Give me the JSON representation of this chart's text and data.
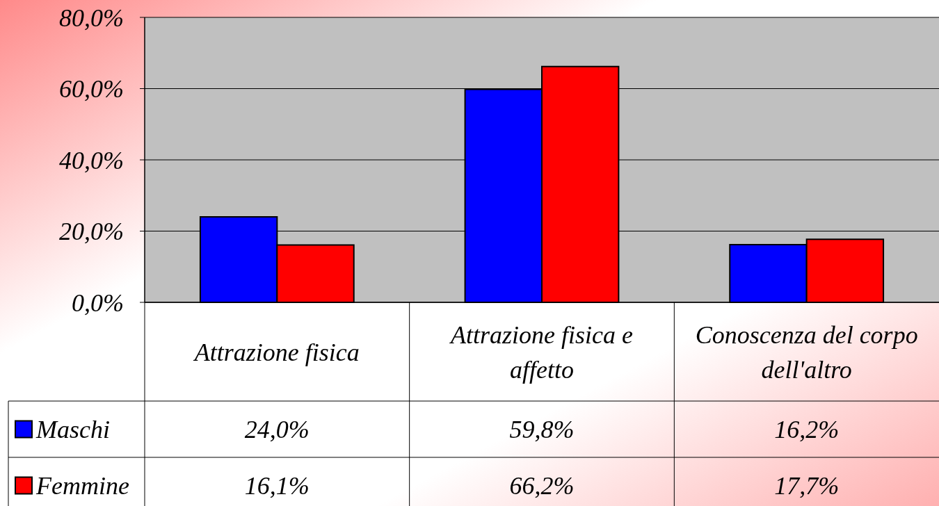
{
  "chart_data": {
    "type": "bar",
    "categories": [
      "Attrazione fisica",
      "Attrazione fisica e affetto",
      "Conoscenza del corpo dell'altro"
    ],
    "series": [
      {
        "name": "Maschi",
        "color": "#0000ff",
        "values": [
          24.0,
          59.8,
          16.2
        ],
        "value_labels": [
          "24,0%",
          "59,8%",
          "16,2%"
        ]
      },
      {
        "name": "Femmine",
        "color": "#ff0000",
        "values": [
          16.1,
          66.2,
          17.7
        ],
        "value_labels": [
          "16,1%",
          "66,2%",
          "17,7%"
        ]
      }
    ],
    "ylim": [
      0,
      80
    ],
    "yticks": [
      {
        "value": 0,
        "label": "0,0%"
      },
      {
        "value": 20,
        "label": "20,0%"
      },
      {
        "value": 40,
        "label": "40,0%"
      },
      {
        "value": 60,
        "label": "60,0%"
      },
      {
        "value": 80,
        "label": "80,0%"
      }
    ],
    "grid": "y",
    "legend": "bottom"
  }
}
